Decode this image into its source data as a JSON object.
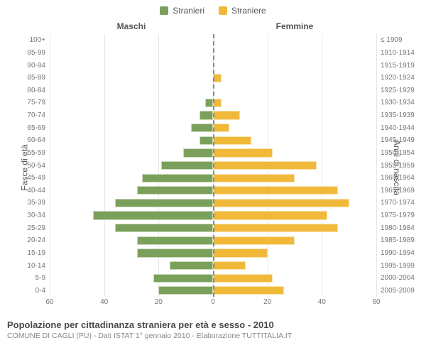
{
  "legend": {
    "male": {
      "label": "Stranieri",
      "color": "#7ba05b"
    },
    "female": {
      "label": "Straniere",
      "color": "#f0b93a"
    }
  },
  "headers": {
    "left": "Maschi",
    "right": "Femmine"
  },
  "axis_titles": {
    "left": "Fasce di età",
    "right": "Anni di nascita"
  },
  "x": {
    "max": 60,
    "ticks": [
      60,
      40,
      20,
      0,
      20,
      40,
      60
    ],
    "grid_positions_pct": [
      0,
      16.67,
      33.33,
      50,
      66.67,
      83.33,
      100
    ]
  },
  "colors": {
    "bg": "#ffffff",
    "grid": "#e6e6e6",
    "text": "#555555",
    "tick": "#777777"
  },
  "rows": [
    {
      "age": "100+",
      "birth": "≤ 1909",
      "m": 0,
      "f": 0
    },
    {
      "age": "95-99",
      "birth": "1910-1914",
      "m": 0,
      "f": 0
    },
    {
      "age": "90-94",
      "birth": "1915-1919",
      "m": 0,
      "f": 0
    },
    {
      "age": "85-89",
      "birth": "1920-1924",
      "m": 0,
      "f": 3
    },
    {
      "age": "80-84",
      "birth": "1925-1929",
      "m": 0,
      "f": 0
    },
    {
      "age": "75-79",
      "birth": "1930-1934",
      "m": 3,
      "f": 3
    },
    {
      "age": "70-74",
      "birth": "1935-1939",
      "m": 5,
      "f": 10
    },
    {
      "age": "65-69",
      "birth": "1940-1944",
      "m": 8,
      "f": 6
    },
    {
      "age": "60-64",
      "birth": "1945-1949",
      "m": 5,
      "f": 14
    },
    {
      "age": "55-59",
      "birth": "1950-1954",
      "m": 11,
      "f": 22
    },
    {
      "age": "50-54",
      "birth": "1955-1959",
      "m": 19,
      "f": 38
    },
    {
      "age": "45-49",
      "birth": "1960-1964",
      "m": 26,
      "f": 30
    },
    {
      "age": "40-44",
      "birth": "1965-1969",
      "m": 28,
      "f": 46
    },
    {
      "age": "35-39",
      "birth": "1970-1974",
      "m": 36,
      "f": 50
    },
    {
      "age": "30-34",
      "birth": "1975-1979",
      "m": 44,
      "f": 42
    },
    {
      "age": "25-29",
      "birth": "1980-1984",
      "m": 36,
      "f": 46
    },
    {
      "age": "20-24",
      "birth": "1985-1989",
      "m": 28,
      "f": 30
    },
    {
      "age": "15-19",
      "birth": "1990-1994",
      "m": 28,
      "f": 20
    },
    {
      "age": "10-14",
      "birth": "1995-1999",
      "m": 16,
      "f": 12
    },
    {
      "age": "5-9",
      "birth": "2000-2004",
      "m": 22,
      "f": 22
    },
    {
      "age": "0-4",
      "birth": "2005-2009",
      "m": 20,
      "f": 26
    }
  ],
  "footer": {
    "title": "Popolazione per cittadinanza straniera per età e sesso - 2010",
    "subtitle": "COMUNE DI CAGLI (PU) - Dati ISTAT 1° gennaio 2010 - Elaborazione TUTTITALIA.IT"
  }
}
